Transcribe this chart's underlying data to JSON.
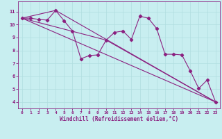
{
  "xlabel": "Windchill (Refroidissement éolien,°C)",
  "bg_color": "#c8eef0",
  "line_color": "#8b2080",
  "grid_color": "#b0dde0",
  "series1_x": [
    0,
    1,
    2,
    3,
    4,
    5,
    6,
    7,
    8,
    9,
    10,
    11,
    12,
    13,
    14,
    15,
    16,
    17,
    18,
    19,
    20,
    21,
    22,
    23
  ],
  "series1_y": [
    10.5,
    10.5,
    10.4,
    10.35,
    11.1,
    10.3,
    9.5,
    7.35,
    7.6,
    7.65,
    8.8,
    9.4,
    9.5,
    8.85,
    10.65,
    10.5,
    9.7,
    7.7,
    7.7,
    7.65,
    6.4,
    5.05,
    5.7,
    4.0
  ],
  "line2_x": [
    0,
    23
  ],
  "line2_y": [
    10.5,
    4.0
  ],
  "line3_x": [
    0,
    4,
    23
  ],
  "line3_y": [
    10.5,
    11.1,
    4.0
  ],
  "line4_x": [
    0,
    10,
    23
  ],
  "line4_y": [
    10.5,
    8.8,
    4.0
  ],
  "xlim": [
    -0.5,
    23.5
  ],
  "ylim": [
    3.5,
    11.8
  ],
  "yticks": [
    4,
    5,
    6,
    7,
    8,
    9,
    10,
    11
  ],
  "xticks": [
    0,
    1,
    2,
    3,
    4,
    5,
    6,
    7,
    8,
    9,
    10,
    11,
    12,
    13,
    14,
    15,
    16,
    17,
    18,
    19,
    20,
    21,
    22,
    23
  ],
  "marker": "D",
  "markersize": 2.2,
  "linewidth": 0.8
}
